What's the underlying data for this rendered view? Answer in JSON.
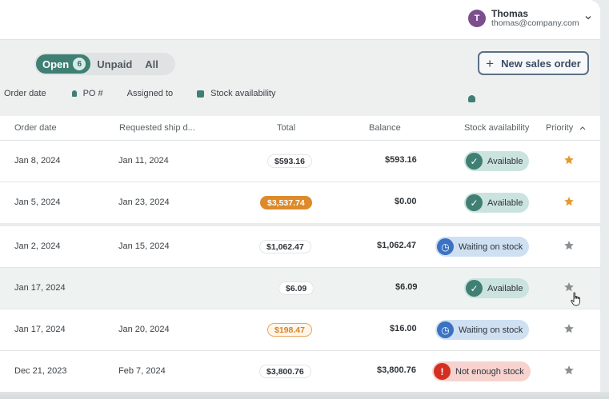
{
  "user": {
    "initial": "T",
    "name": "Thomas",
    "email": "thomas@company.com"
  },
  "tabs": {
    "open_label": "Open",
    "open_count": "6",
    "unpaid_label": "Unpaid",
    "all_label": "All"
  },
  "new_order_button": "New sales order",
  "filters": {
    "order_date": "Order date",
    "po": "PO #",
    "assigned_to": "Assigned to",
    "stock_availability": "Stock availability"
  },
  "columns": {
    "order_date": "Order date",
    "requested_ship": "Requested ship d...",
    "total": "Total",
    "balance": "Balance",
    "stock_availability": "Stock availability",
    "priority": "Priority"
  },
  "rows": [
    {
      "order_date": "Jan 8, 2024",
      "ship_date": "Jan 11, 2024",
      "total": "$593.16",
      "balance": "$593.16",
      "stock": "Available"
    },
    {
      "order_date": "Jan 5, 2024",
      "ship_date": "Jan 23, 2024",
      "total": "$3,537.74",
      "balance": "$0.00",
      "stock": "Available"
    },
    {
      "order_date": "Jan 2, 2024",
      "ship_date": "Jan 15, 2024",
      "total": "$1,062.47",
      "balance": "$1,062.47",
      "stock": "Waiting on stock"
    },
    {
      "order_date": "Jan 17, 2024",
      "ship_date": "",
      "total": "$6.09",
      "balance": "$6.09",
      "stock": "Available"
    },
    {
      "order_date": "Jan 17, 2024",
      "ship_date": "Jan 20, 2024",
      "total": "$198.47",
      "balance": "$16.00",
      "stock": "Waiting on stock"
    },
    {
      "order_date": "Dec 21, 2023",
      "ship_date": "Feb 7, 2024",
      "total": "$3,800.76",
      "balance": "$3,800.76",
      "stock": "Not enough stock"
    }
  ],
  "colors": {
    "accent": "#3f7f74",
    "paid": "#dc8a2a",
    "priority_on": "#e39a2d",
    "priority_off": "#8a8f94",
    "waiting": "#3c72c2",
    "not_enough": "#d42f22"
  }
}
